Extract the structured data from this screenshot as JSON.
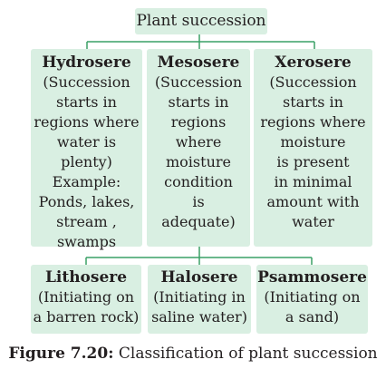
{
  "root": "Plant succession",
  "top": [
    {
      "title": "Hydrosere",
      "body": "(Succession\nstarts in\nregions where\nwater is\nplenty)\nExample:\nPonds, lakes,\nstream ,\nswamps"
    },
    {
      "title": "Mesosere",
      "body": "(Succession\nstarts in\nregions\nwhere\nmoisture\ncondition\nis\nadequate)"
    },
    {
      "title": "Xerosere",
      "body": "(Succession\nstarts in\nregions where\nmoisture\nis present\nin minimal\namount with\nwater"
    }
  ],
  "bottom": [
    {
      "title": "Lithosere",
      "body": "(Initiating on\na barren rock)"
    },
    {
      "title": "Halosere",
      "body": "(Initiating in\nsaline water)"
    },
    {
      "title": "Psammosere",
      "body": "(Initiating on\na sand)"
    }
  ],
  "caption": {
    "label": "Figure 7.20:",
    "text": " Classification of plant succession"
  },
  "colors": {
    "box": "#d9efe2",
    "line": "#3aa066",
    "text": "#231f20"
  }
}
